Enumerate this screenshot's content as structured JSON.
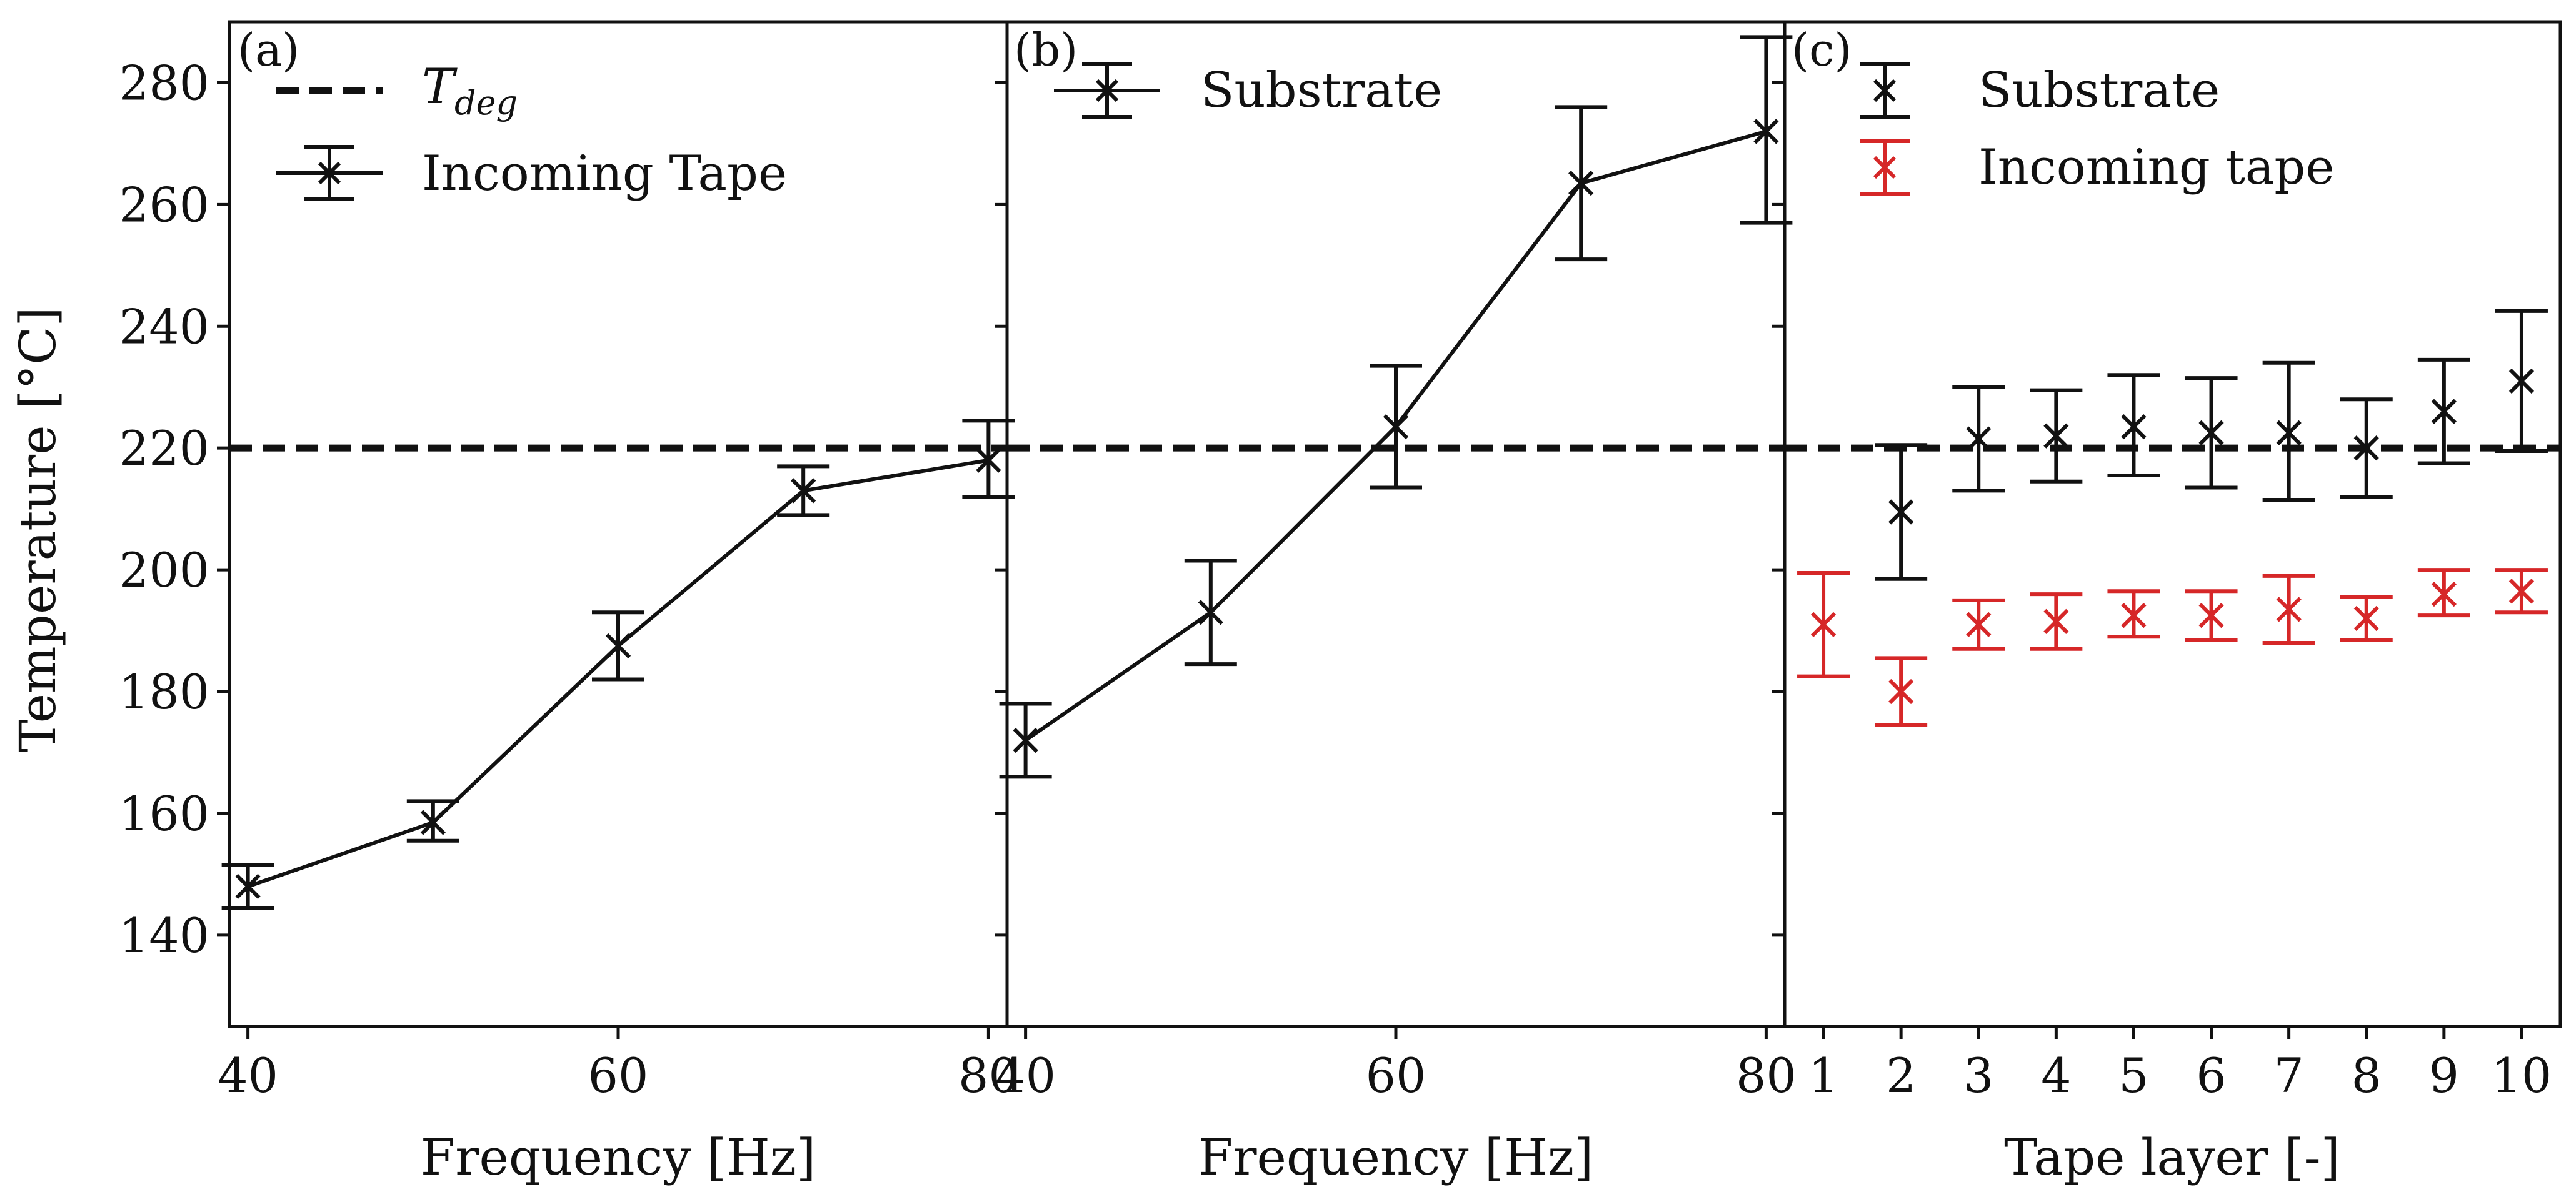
{
  "figure": {
    "ylabel": "Temperature [°C]",
    "threshold": {
      "label_main": "T",
      "label_sub": "deg",
      "value": 220
    }
  },
  "chart_data": [
    {
      "type": "line",
      "panel_label": "(a)",
      "xlabel": "Frequency [Hz]",
      "ylabel": "Temperature [°C]",
      "xlim": [
        39,
        81
      ],
      "ylim": [
        125,
        290
      ],
      "xticks": [
        40,
        60,
        80
      ],
      "yticks": [
        140,
        160,
        180,
        200,
        220,
        240,
        260,
        280
      ],
      "legend_position": "top-left",
      "series": [
        {
          "name": "Incoming Tape",
          "color": "#111111",
          "marker": "x",
          "x": [
            40,
            50,
            60,
            70,
            80
          ],
          "y": [
            148,
            158.5,
            187.5,
            213,
            218
          ],
          "err_low": [
            3.5,
            3,
            5.5,
            4,
            6
          ],
          "err_high": [
            3.5,
            3.5,
            5.5,
            4,
            6.5
          ]
        }
      ],
      "hline": {
        "value": 220,
        "style": "dashed"
      }
    },
    {
      "type": "line",
      "panel_label": "(b)",
      "xlabel": "Frequency [Hz]",
      "xlim": [
        39,
        81
      ],
      "ylim": [
        125,
        290
      ],
      "xticks": [
        40,
        60,
        80
      ],
      "legend_position": "top-left",
      "series": [
        {
          "name": "Substrate",
          "color": "#111111",
          "marker": "x",
          "x": [
            40,
            50,
            60,
            70,
            80
          ],
          "y": [
            172,
            193,
            223.5,
            263.5,
            272
          ],
          "err_low": [
            6,
            8.5,
            10,
            12.5,
            15
          ],
          "err_high": [
            6,
            8.5,
            10,
            12.5,
            15.5
          ]
        }
      ],
      "hline": {
        "value": 220,
        "style": "dashed"
      }
    },
    {
      "type": "scatter",
      "panel_label": "(c)",
      "xlabel": "Tape layer [-]",
      "xlim": [
        0.5,
        10.5
      ],
      "ylim": [
        125,
        290
      ],
      "xticks": [
        1,
        2,
        3,
        4,
        5,
        6,
        7,
        8,
        9,
        10
      ],
      "legend_position": "top-left",
      "series": [
        {
          "name": "Substrate",
          "color": "#111111",
          "marker": "x",
          "x": [
            2,
            3,
            4,
            5,
            6,
            7,
            8,
            9,
            10
          ],
          "y": [
            209.5,
            221.5,
            222,
            223.5,
            222.5,
            222.5,
            220,
            226,
            231
          ],
          "err_low": [
            11,
            8.5,
            7.5,
            8,
            9,
            11,
            8,
            8.5,
            11.5
          ],
          "err_high": [
            11,
            8.5,
            7.5,
            8.5,
            9,
            11.5,
            8,
            8.5,
            11.5
          ]
        },
        {
          "name": "Incoming tape",
          "color": "#d62728",
          "marker": "x",
          "x": [
            1,
            2,
            3,
            4,
            5,
            6,
            7,
            8,
            9,
            10
          ],
          "y": [
            191,
            180,
            191,
            191.5,
            192.5,
            192.5,
            193.5,
            192,
            196,
            196.5
          ],
          "err_low": [
            8.5,
            5.5,
            4,
            4.5,
            3.5,
            4,
            5.5,
            3.5,
            3.5,
            3.5
          ],
          "err_high": [
            8.5,
            5.5,
            4,
            4.5,
            4,
            4,
            5.5,
            3.5,
            4,
            3.5
          ]
        }
      ],
      "hline": {
        "value": 220,
        "style": "dashed"
      }
    }
  ]
}
